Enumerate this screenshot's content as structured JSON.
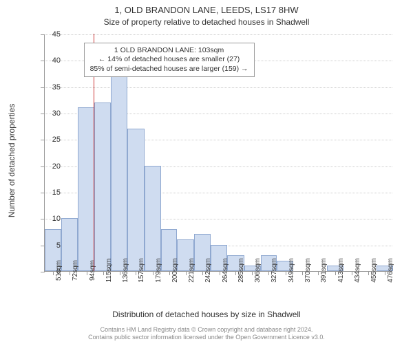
{
  "chart": {
    "type": "histogram",
    "title": "1, OLD BRANDON LANE, LEEDS, LS17 8HW",
    "subtitle": "Size of property relative to detached houses in Shadwell",
    "y_axis_title": "Number of detached properties",
    "x_axis_title": "Distribution of detached houses by size in Shadwell",
    "background_color": "#ffffff",
    "bar_fill": "#cfdcf0",
    "bar_border": "#8fa8d0",
    "grid_color": "#cccccc",
    "axis_color": "#999999",
    "text_color": "#333333",
    "marker_color": "#cc3333",
    "title_fontsize": 13,
    "subtitle_fontsize": 12,
    "axis_title_fontsize": 12,
    "tick_fontsize": 11,
    "xtick_fontsize": 10,
    "annotation_fontsize": 10.5,
    "footer_fontsize": 9,
    "ylim": [
      0,
      45
    ],
    "ytick_step": 5,
    "y_ticks": [
      0,
      5,
      10,
      15,
      20,
      25,
      30,
      35,
      40,
      45
    ],
    "x_range": [
      40,
      487
    ],
    "x_tick_labels": [
      "51sqm",
      "72sqm",
      "94sqm",
      "115sqm",
      "136sqm",
      "157sqm",
      "179sqm",
      "200sqm",
      "221sqm",
      "242sqm",
      "264sqm",
      "285sqm",
      "306sqm",
      "327sqm",
      "349sqm",
      "370sqm",
      "391sqm",
      "413sqm",
      "434sqm",
      "455sqm",
      "476sqm"
    ],
    "x_tick_values": [
      51,
      72,
      94,
      115,
      136,
      157,
      179,
      200,
      221,
      242,
      264,
      285,
      306,
      327,
      349,
      370,
      391,
      413,
      434,
      455,
      476
    ],
    "bars": [
      {
        "x0": 40,
        "x1": 61,
        "y": 8
      },
      {
        "x0": 61,
        "x1": 82,
        "y": 10
      },
      {
        "x0": 82,
        "x1": 104,
        "y": 31
      },
      {
        "x0": 104,
        "x1": 125,
        "y": 32
      },
      {
        "x0": 125,
        "x1": 146,
        "y": 37
      },
      {
        "x0": 146,
        "x1": 168,
        "y": 27
      },
      {
        "x0": 168,
        "x1": 189,
        "y": 20
      },
      {
        "x0": 189,
        "x1": 210,
        "y": 8
      },
      {
        "x0": 210,
        "x1": 232,
        "y": 6
      },
      {
        "x0": 232,
        "x1": 253,
        "y": 7
      },
      {
        "x0": 253,
        "x1": 274,
        "y": 5
      },
      {
        "x0": 274,
        "x1": 296,
        "y": 3
      },
      {
        "x0": 296,
        "x1": 317,
        "y": 1
      },
      {
        "x0": 317,
        "x1": 338,
        "y": 3
      },
      {
        "x0": 338,
        "x1": 359,
        "y": 2
      },
      {
        "x0": 359,
        "x1": 381,
        "y": 0
      },
      {
        "x0": 381,
        "x1": 402,
        "y": 0
      },
      {
        "x0": 402,
        "x1": 423,
        "y": 1
      },
      {
        "x0": 423,
        "x1": 445,
        "y": 0
      },
      {
        "x0": 445,
        "x1": 466,
        "y": 0
      },
      {
        "x0": 466,
        "x1": 487,
        "y": 1
      }
    ],
    "marker_x": 103,
    "marker_height_y": 45,
    "annotation": {
      "lines": [
        "1 OLD BRANDON LANE: 103sqm",
        "← 14% of detached houses are smaller (27)",
        "85% of semi-detached houses are larger (159) →"
      ],
      "x": 90,
      "y_top": 43.5,
      "border_color": "#999999",
      "background": "#ffffff"
    },
    "footer_lines": [
      "Contains HM Land Registry data © Crown copyright and database right 2024.",
      "Contains public sector information licensed under the Open Government Licence v3.0."
    ]
  }
}
